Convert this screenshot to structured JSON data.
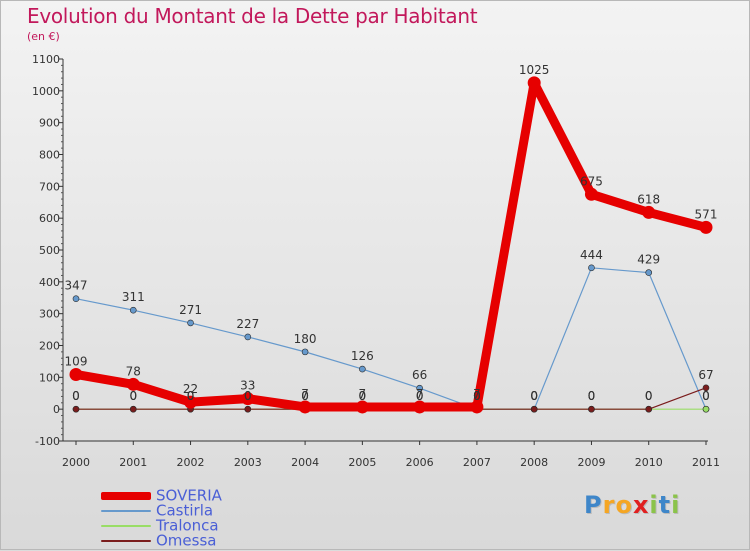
{
  "title": "Evolution du Montant de la Dette par Habitant",
  "subtitle": "(en €)",
  "brand": {
    "text": "Proxiti",
    "letters": [
      {
        "ch": "P",
        "color": "#3e86c9"
      },
      {
        "ch": "r",
        "color": "#f5a623"
      },
      {
        "ch": "o",
        "color": "#f5a623"
      },
      {
        "ch": "x",
        "color": "#e02020"
      },
      {
        "ch": "i",
        "color": "#8bc34a"
      },
      {
        "ch": "t",
        "color": "#3e86c9"
      },
      {
        "ch": "i",
        "color": "#8bc34a"
      }
    ]
  },
  "chart_data": {
    "type": "line",
    "title": "Evolution du Montant de la Dette par Habitant",
    "subtitle": "(en €)",
    "xlabel": "",
    "ylabel": "",
    "x": [
      "2000",
      "2001",
      "2002",
      "2003",
      "2004",
      "2005",
      "2006",
      "2007",
      "2008",
      "2009",
      "2010",
      "2011"
    ],
    "ylim": [
      -100,
      1100
    ],
    "yticks": [
      "-100",
      "0",
      "100",
      "200",
      "300",
      "400",
      "500",
      "600",
      "700",
      "800",
      "900",
      "1000",
      "1100"
    ],
    "grid": false,
    "legend_position": "bottom-left",
    "series": [
      {
        "name": "SOVERIA",
        "color": "#e60000",
        "values": [
          109,
          78,
          22,
          33,
          7,
          7,
          7,
          7,
          1025,
          675,
          618,
          571
        ],
        "labels": [
          "109",
          "78",
          "22",
          "33",
          "7",
          "7",
          "7",
          "7",
          "1025",
          "675",
          "618",
          "571"
        ]
      },
      {
        "name": "Castirla",
        "color": "#6699cc",
        "values": [
          347,
          311,
          271,
          227,
          180,
          126,
          66,
          0,
          0,
          444,
          429,
          0
        ],
        "labels": [
          "347",
          "311",
          "271",
          "227",
          "180",
          "126",
          "66",
          "0",
          "0",
          "444",
          "429",
          "0"
        ]
      },
      {
        "name": "Tralonca",
        "color": "#99dd66",
        "values": [
          0,
          0,
          0,
          0,
          0,
          0,
          0,
          0,
          0,
          0,
          0,
          0
        ],
        "labels": [
          "0",
          "0",
          "0",
          "0",
          "0",
          "0",
          "0",
          "0",
          "0",
          "0",
          "0",
          "0"
        ]
      },
      {
        "name": "Omessa",
        "color": "#7a1c1c",
        "values": [
          0,
          0,
          0,
          0,
          0,
          0,
          0,
          0,
          0,
          0,
          0,
          67
        ],
        "labels": [
          "0",
          "0",
          "0",
          "0",
          "0",
          "0",
          "0",
          "0",
          "0",
          "0",
          "0",
          "67"
        ]
      }
    ]
  }
}
